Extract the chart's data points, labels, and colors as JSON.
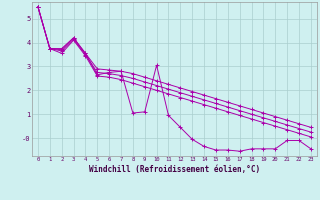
{
  "xlabel": "Windchill (Refroidissement éolien,°C)",
  "background_color": "#cff0f0",
  "grid_color": "#aacece",
  "line_color": "#aa00aa",
  "x_ticks": [
    0,
    1,
    2,
    3,
    4,
    5,
    6,
    7,
    8,
    9,
    10,
    11,
    12,
    13,
    14,
    15,
    16,
    17,
    18,
    19,
    20,
    21,
    22,
    23
  ],
  "y_ticks": [
    0,
    1,
    2,
    3,
    4,
    5
  ],
  "y_tick_labels": [
    "-0",
    "1",
    "2",
    "3",
    "4",
    "5"
  ],
  "ylim": [
    -0.75,
    5.7
  ],
  "xlim": [
    -0.5,
    23.5
  ],
  "smooth_upper": [
    5.5,
    3.75,
    3.75,
    4.2,
    3.55,
    2.9,
    2.85,
    2.8,
    2.7,
    2.55,
    2.4,
    2.25,
    2.1,
    1.95,
    1.8,
    1.65,
    1.5,
    1.35,
    1.2,
    1.05,
    0.9,
    0.75,
    0.6,
    0.45
  ],
  "smooth_lower": [
    5.5,
    3.75,
    3.55,
    4.1,
    3.45,
    2.6,
    2.55,
    2.45,
    2.3,
    2.15,
    2.0,
    1.85,
    1.7,
    1.55,
    1.4,
    1.25,
    1.1,
    0.95,
    0.8,
    0.65,
    0.5,
    0.35,
    0.2,
    0.05
  ],
  "smooth_mid": [
    5.5,
    3.75,
    3.65,
    4.15,
    3.5,
    2.75,
    2.7,
    2.62,
    2.5,
    2.35,
    2.2,
    2.05,
    1.9,
    1.75,
    1.6,
    1.45,
    1.3,
    1.15,
    1.0,
    0.85,
    0.7,
    0.55,
    0.4,
    0.25
  ],
  "jagged": [
    5.5,
    3.75,
    3.7,
    4.2,
    3.55,
    2.65,
    2.75,
    2.8,
    1.05,
    1.1,
    3.05,
    0.95,
    0.45,
    -0.05,
    -0.35,
    -0.5,
    -0.5,
    -0.55,
    -0.45,
    -0.45,
    -0.45,
    -0.1,
    -0.1,
    -0.45
  ]
}
